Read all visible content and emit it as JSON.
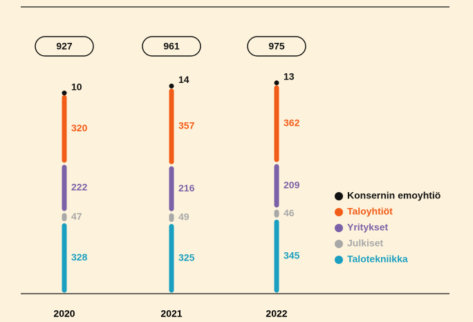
{
  "chart_data": {
    "type": "stacked-bar",
    "categories": [
      "2020",
      "2021",
      "2022"
    ],
    "totals": [
      927,
      961,
      975
    ],
    "series": [
      {
        "name": "Konsernin emoyhtiö",
        "color": "#111111",
        "values": [
          10,
          14,
          13
        ]
      },
      {
        "name": "Taloyhtiöt",
        "color": "#f25c19",
        "values": [
          320,
          357,
          362
        ]
      },
      {
        "name": "Yritykset",
        "color": "#7b62a8",
        "values": [
          222,
          216,
          209
        ]
      },
      {
        "name": "Julkiset",
        "color": "#a8a8a8",
        "values": [
          47,
          49,
          46
        ]
      },
      {
        "name": "Talotekniikka",
        "color": "#1a9fc0",
        "values": [
          328,
          325,
          345
        ]
      }
    ],
    "ylim": [
      0,
      1000
    ],
    "legend": "right"
  }
}
